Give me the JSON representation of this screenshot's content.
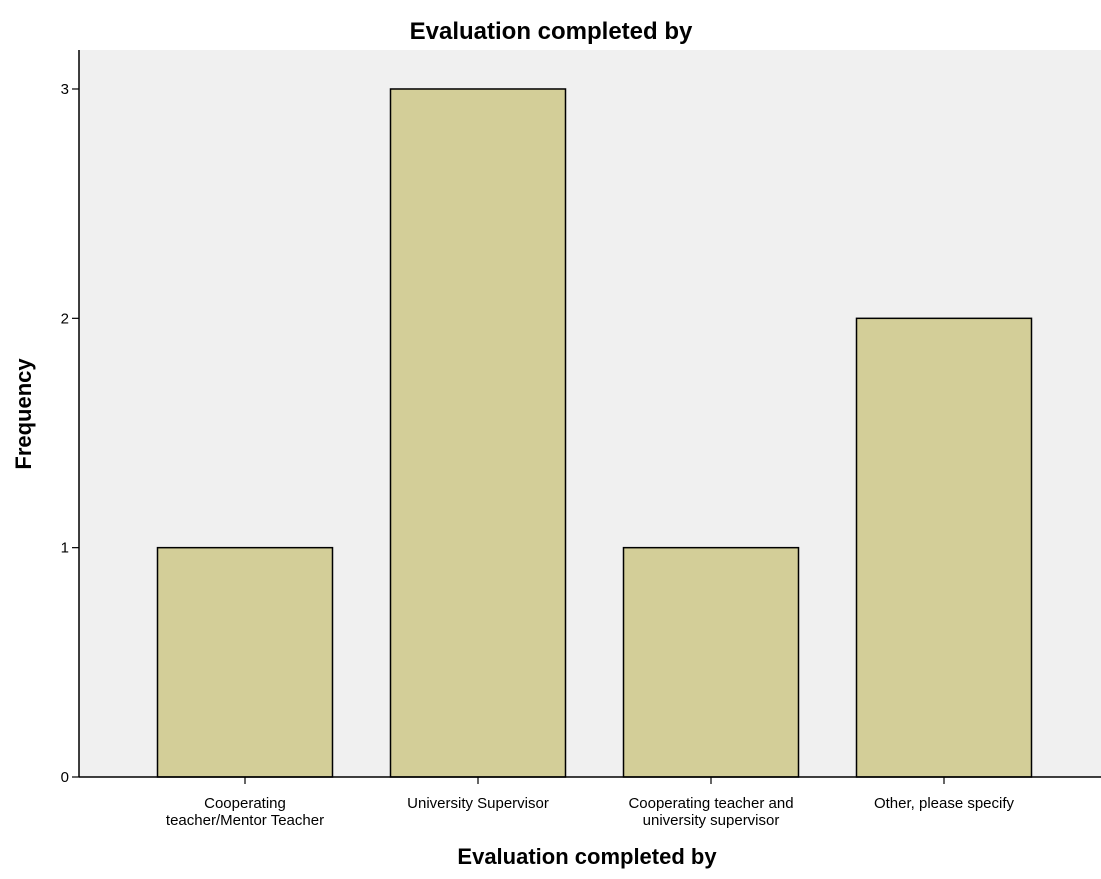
{
  "chart_data": {
    "type": "bar",
    "title": "Evaluation completed by",
    "xlabel": "Evaluation completed by",
    "ylabel": "Frequency",
    "categories": [
      [
        "Cooperating",
        "teacher/Mentor Teacher"
      ],
      [
        "University Supervisor"
      ],
      [
        "Cooperating teacher and",
        "university supervisor"
      ],
      [
        "Other, please specify"
      ]
    ],
    "values": [
      1,
      3,
      1,
      2
    ],
    "ylim": [
      0,
      3.17
    ],
    "yticks": [
      0,
      1,
      2,
      3
    ],
    "grid": false,
    "legend": "none",
    "colors": {
      "bar_fill": "#d3ce98",
      "bar_stroke": "#000000",
      "plot_background": "#f0f0f0",
      "page_background": "#ffffff"
    }
  }
}
